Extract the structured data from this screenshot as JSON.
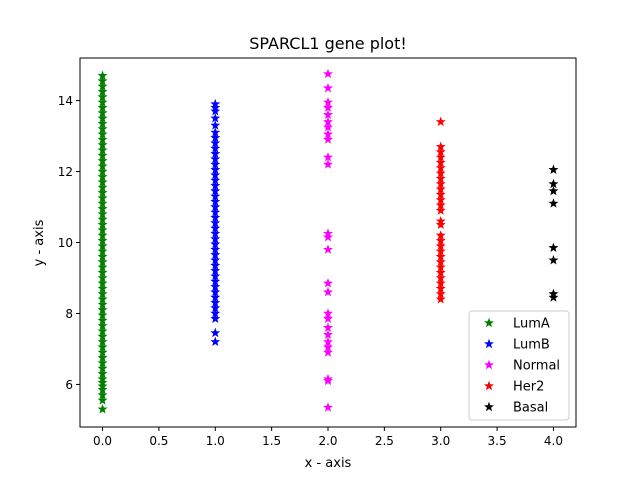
{
  "chart_data": {
    "type": "scatter",
    "title": "SPARCL1 gene plot!",
    "xlabel": "x - axis",
    "ylabel": "y - axis",
    "xlim": [
      -0.2,
      4.2
    ],
    "ylim": [
      4.8,
      15.2
    ],
    "xticks": [
      0.0,
      0.5,
      1.0,
      1.5,
      2.0,
      2.5,
      3.0,
      3.5,
      4.0
    ],
    "xtick_labels": [
      "0.0",
      "0.5",
      "1.0",
      "1.5",
      "2.0",
      "2.5",
      "3.0",
      "3.5",
      "4.0"
    ],
    "yticks": [
      6,
      8,
      10,
      12,
      14
    ],
    "ytick_labels": [
      "6",
      "8",
      "10",
      "12",
      "14"
    ],
    "grid": false,
    "marker": "star",
    "legend_position": "lower-right",
    "series": [
      {
        "name": "LumA",
        "color": "#008000",
        "x": 0,
        "y": [
          5.3,
          5.55,
          5.7,
          5.85,
          5.95,
          6.05,
          6.15,
          6.3,
          6.45,
          6.6,
          6.75,
          6.9,
          7.05,
          7.2,
          7.35,
          7.5,
          7.65,
          7.8,
          7.95,
          8.1,
          8.25,
          8.4,
          8.55,
          8.7,
          8.85,
          9.0,
          9.15,
          9.3,
          9.45,
          9.6,
          9.75,
          9.9,
          10.05,
          10.2,
          10.35,
          10.5,
          10.65,
          10.8,
          10.95,
          11.1,
          11.25,
          11.4,
          11.55,
          11.7,
          11.85,
          12.0,
          12.15,
          12.3,
          12.45,
          12.6,
          12.75,
          12.9,
          13.05,
          13.2,
          13.35,
          13.5,
          13.65,
          13.8,
          13.95,
          14.1,
          14.25,
          14.4,
          14.55,
          14.7
        ]
      },
      {
        "name": "LumB",
        "color": "#0000ff",
        "x": 1,
        "y": [
          7.2,
          7.45,
          7.85,
          8.0,
          8.15,
          8.3,
          8.45,
          8.6,
          8.75,
          8.9,
          9.05,
          9.2,
          9.35,
          9.5,
          9.65,
          9.8,
          9.95,
          10.1,
          10.25,
          10.4,
          10.55,
          10.7,
          10.85,
          11.0,
          11.15,
          11.3,
          11.45,
          11.6,
          11.75,
          11.9,
          12.05,
          12.2,
          12.35,
          12.5,
          12.65,
          12.8,
          12.95,
          13.1,
          13.3,
          13.5,
          13.7,
          13.8,
          13.9
        ]
      },
      {
        "name": "Normal",
        "color": "#ff00ff",
        "x": 2,
        "y": [
          5.35,
          6.1,
          6.15,
          6.9,
          7.05,
          7.2,
          7.4,
          7.6,
          7.85,
          8.0,
          8.6,
          8.85,
          9.8,
          10.15,
          10.25,
          12.2,
          12.4,
          12.9,
          13.05,
          13.25,
          13.4,
          13.6,
          13.8,
          13.95,
          14.35,
          14.75
        ]
      },
      {
        "name": "Her2",
        "color": "#ff0000",
        "x": 3,
        "y": [
          8.4,
          8.55,
          8.7,
          8.85,
          9.0,
          9.15,
          9.3,
          9.45,
          9.6,
          9.75,
          9.9,
          10.05,
          10.2,
          10.5,
          10.6,
          10.9,
          11.05,
          11.2,
          11.35,
          11.5,
          11.65,
          11.8,
          11.95,
          12.1,
          12.25,
          12.4,
          12.55,
          12.7,
          13.4
        ]
      },
      {
        "name": "Basal",
        "color": "#000000",
        "x": 4,
        "y": [
          8.45,
          8.55,
          9.5,
          9.85,
          11.1,
          11.45,
          11.65,
          12.05
        ]
      }
    ]
  }
}
